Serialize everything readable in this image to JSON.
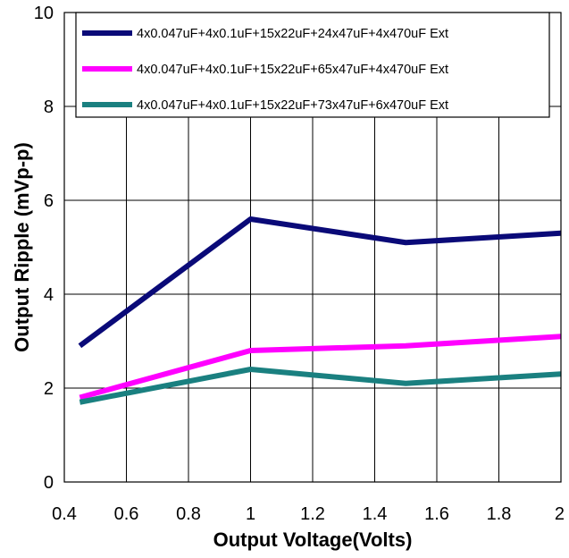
{
  "chart_data": {
    "type": "line",
    "xlabel": "Output Voltage(Volts)",
    "ylabel": "Output Ripple (mVp-p)",
    "xlim": [
      0.4,
      2.0
    ],
    "ylim": [
      0,
      10
    ],
    "x_ticks": [
      "0.4",
      "0.6",
      "0.8",
      "1",
      "1.2",
      "1.4",
      "1.6",
      "1.8",
      "2"
    ],
    "y_ticks": [
      "0",
      "2",
      "4",
      "6",
      "8",
      "10"
    ],
    "grid": true,
    "legend_position": "top",
    "x": [
      0.45,
      1.0,
      1.5,
      2.0
    ],
    "series": [
      {
        "name": "4x0.047uF+4x0.1uF+15x22uF+24x47uF+4x470uF Ext",
        "color": "#0a0a78",
        "values": [
          2.9,
          5.6,
          5.1,
          5.3
        ]
      },
      {
        "name": "4x0.047uF+4x0.1uF+15x22uF+65x47uF+4x470uF Ext",
        "color": "#ff00ff",
        "values": [
          1.8,
          2.8,
          2.9,
          3.1
        ]
      },
      {
        "name": "4x0.047uF+4x0.1uF+15x22uF+73x47uF+6x470uF Ext",
        "color": "#1a8080",
        "values": [
          1.7,
          2.4,
          2.1,
          2.3
        ]
      }
    ]
  }
}
